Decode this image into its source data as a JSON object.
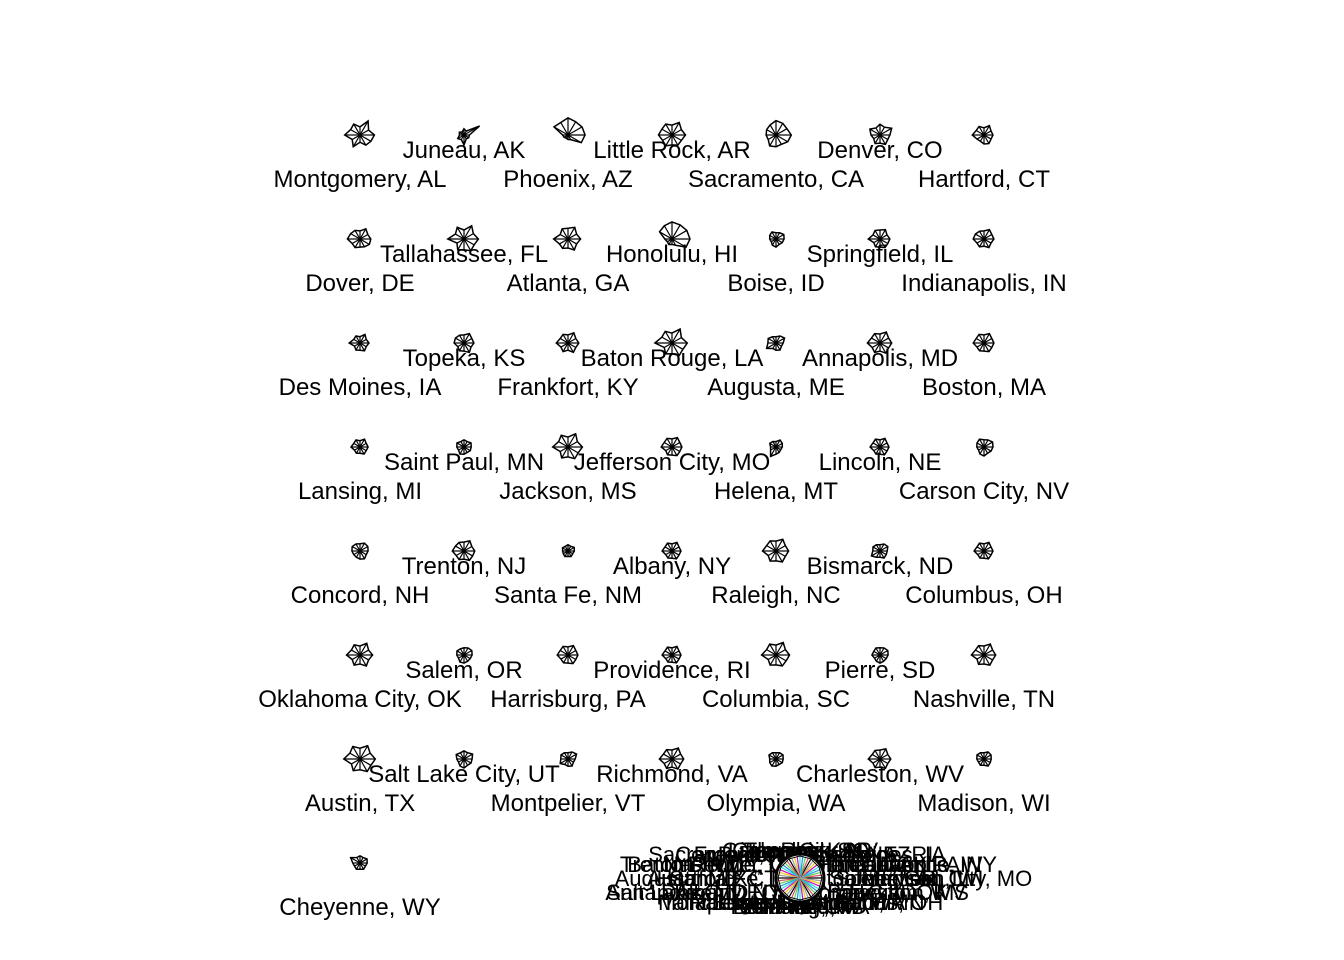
{
  "chart_data": {
    "type": "stars",
    "title": "",
    "colors": {
      "ink": "#000000",
      "key_palette": [
        "#000000",
        "#df536b",
        "#61d04f",
        "#2297e6",
        "#28e2e5",
        "#cd0bbc",
        "#f5c710",
        "#9e9e9e"
      ]
    },
    "cities": [
      {
        "label": "Montgomery, AL",
        "values": [
          0.8,
          0.55,
          0.9,
          0.45,
          0.7,
          0.6,
          0.85,
          0.5,
          0.75,
          0.4,
          0.65,
          0.7
        ]
      },
      {
        "label": "Juneau, AK",
        "values": [
          0.3,
          1.0,
          0.25,
          0.35,
          0.2,
          0.3,
          0.25,
          0.4,
          0.3,
          0.55,
          0.25,
          0.3
        ]
      },
      {
        "label": "Phoenix, AZ",
        "values": [
          0.95,
          0.9,
          0.85,
          0.95,
          0.8,
          0.9,
          0.3,
          0.25,
          0.2,
          0.25,
          0.3,
          0.85
        ]
      },
      {
        "label": "Little Rock, AR",
        "values": [
          0.75,
          0.6,
          0.8,
          0.55,
          0.7,
          0.65,
          0.75,
          0.6,
          0.7,
          0.55,
          0.65,
          0.6
        ]
      },
      {
        "label": "Sacramento, CA",
        "values": [
          0.85,
          0.7,
          0.75,
          0.8,
          0.65,
          0.6,
          0.55,
          0.5,
          0.7,
          0.65,
          0.6,
          0.75
        ]
      },
      {
        "label": "Denver, CO",
        "values": [
          0.55,
          0.75,
          0.5,
          0.6,
          0.45,
          0.65,
          0.5,
          0.4,
          0.55,
          0.45,
          0.6,
          0.5
        ]
      },
      {
        "label": "Hartford, CT",
        "values": [
          0.5,
          0.45,
          0.6,
          0.4,
          0.55,
          0.5,
          0.65,
          0.45,
          0.4,
          0.5,
          0.55,
          0.45
        ]
      },
      {
        "label": "Dover, DE",
        "values": [
          0.6,
          0.5,
          0.65,
          0.45,
          0.55,
          0.6,
          0.7,
          0.5,
          0.55,
          0.45,
          0.5,
          0.6
        ]
      },
      {
        "label": "Tallahassee, FL",
        "values": [
          0.8,
          0.6,
          0.85,
          0.5,
          0.75,
          0.55,
          0.9,
          0.45,
          0.7,
          0.6,
          0.75,
          0.65
        ]
      },
      {
        "label": "Atlanta, GA",
        "values": [
          0.7,
          0.55,
          0.75,
          0.6,
          0.65,
          0.5,
          0.8,
          0.55,
          0.6,
          0.5,
          0.7,
          0.55
        ]
      },
      {
        "label": "Honolulu, HI",
        "values": [
          1.0,
          0.95,
          0.9,
          0.95,
          0.85,
          0.8,
          0.4,
          0.3,
          0.35,
          0.3,
          0.4,
          0.9
        ]
      },
      {
        "label": "Boise, ID",
        "values": [
          0.45,
          0.5,
          0.4,
          0.35,
          0.45,
          0.4,
          0.35,
          0.3,
          0.4,
          0.45,
          0.35,
          0.4
        ]
      },
      {
        "label": "Springfield, IL",
        "values": [
          0.55,
          0.45,
          0.6,
          0.5,
          0.55,
          0.45,
          0.65,
          0.4,
          0.5,
          0.45,
          0.55,
          0.5
        ]
      },
      {
        "label": "Indianapolis, IN",
        "values": [
          0.55,
          0.5,
          0.6,
          0.45,
          0.5,
          0.55,
          0.6,
          0.45,
          0.5,
          0.4,
          0.55,
          0.45
        ]
      },
      {
        "label": "Des Moines, IA",
        "values": [
          0.5,
          0.4,
          0.55,
          0.35,
          0.45,
          0.4,
          0.6,
          0.35,
          0.45,
          0.4,
          0.5,
          0.4
        ]
      },
      {
        "label": "Topeka, KS",
        "values": [
          0.55,
          0.5,
          0.6,
          0.45,
          0.5,
          0.55,
          0.55,
          0.4,
          0.5,
          0.45,
          0.6,
          0.45
        ]
      },
      {
        "label": "Frankfort, KY",
        "values": [
          0.6,
          0.5,
          0.65,
          0.45,
          0.55,
          0.5,
          0.65,
          0.45,
          0.55,
          0.4,
          0.6,
          0.5
        ]
      },
      {
        "label": "Baton Rouge, LA",
        "values": [
          0.85,
          0.6,
          0.9,
          0.55,
          0.75,
          0.65,
          0.95,
          0.5,
          0.7,
          0.6,
          0.8,
          0.7
        ]
      },
      {
        "label": "Augusta, ME",
        "values": [
          0.4,
          0.55,
          0.45,
          0.35,
          0.4,
          0.5,
          0.45,
          0.6,
          0.35,
          0.4,
          0.45,
          0.35
        ]
      },
      {
        "label": "Annapolis, MD",
        "values": [
          0.65,
          0.55,
          0.7,
          0.5,
          0.6,
          0.55,
          0.7,
          0.5,
          0.6,
          0.45,
          0.65,
          0.55
        ]
      },
      {
        "label": "Boston, MA",
        "values": [
          0.55,
          0.5,
          0.6,
          0.45,
          0.55,
          0.5,
          0.6,
          0.45,
          0.5,
          0.45,
          0.55,
          0.5
        ]
      },
      {
        "label": "Lansing, MI",
        "values": [
          0.45,
          0.4,
          0.5,
          0.35,
          0.45,
          0.4,
          0.5,
          0.35,
          0.4,
          0.35,
          0.45,
          0.4
        ]
      },
      {
        "label": "Saint Paul, MN",
        "values": [
          0.4,
          0.45,
          0.35,
          0.4,
          0.35,
          0.45,
          0.4,
          0.35,
          0.45,
          0.4,
          0.35,
          0.4
        ]
      },
      {
        "label": "Jackson, MS",
        "values": [
          0.8,
          0.6,
          0.85,
          0.55,
          0.75,
          0.6,
          0.85,
          0.5,
          0.7,
          0.55,
          0.75,
          0.65
        ]
      },
      {
        "label": "Jefferson City, MO",
        "values": [
          0.55,
          0.5,
          0.6,
          0.45,
          0.55,
          0.5,
          0.6,
          0.4,
          0.5,
          0.45,
          0.55,
          0.5
        ]
      },
      {
        "label": "Helena, MT",
        "values": [
          0.35,
          0.4,
          0.45,
          0.3,
          0.35,
          0.4,
          0.3,
          0.35,
          0.6,
          0.4,
          0.35,
          0.3
        ]
      },
      {
        "label": "Lincoln, NE",
        "values": [
          0.5,
          0.45,
          0.55,
          0.4,
          0.5,
          0.45,
          0.55,
          0.4,
          0.45,
          0.4,
          0.5,
          0.45
        ]
      },
      {
        "label": "Carson City, NV",
        "values": [
          0.5,
          0.55,
          0.45,
          0.4,
          0.5,
          0.45,
          0.4,
          0.35,
          0.45,
          0.5,
          0.4,
          0.45
        ]
      },
      {
        "label": "Concord, NH",
        "values": [
          0.45,
          0.5,
          0.5,
          0.4,
          0.45,
          0.5,
          0.45,
          0.4,
          0.4,
          0.45,
          0.5,
          0.4
        ]
      },
      {
        "label": "Trenton, NJ",
        "values": [
          0.6,
          0.5,
          0.65,
          0.5,
          0.55,
          0.55,
          0.65,
          0.5,
          0.55,
          0.45,
          0.6,
          0.55
        ]
      },
      {
        "label": "Santa Fe, NM",
        "values": [
          0.35,
          0.4,
          0.3,
          0.35,
          0.3,
          0.35,
          0.3,
          0.3,
          0.35,
          0.3,
          0.35,
          0.3
        ]
      },
      {
        "label": "Albany, NY",
        "values": [
          0.5,
          0.45,
          0.55,
          0.4,
          0.5,
          0.45,
          0.55,
          0.4,
          0.45,
          0.4,
          0.5,
          0.45
        ]
      },
      {
        "label": "Raleigh, NC",
        "values": [
          0.7,
          0.6,
          0.75,
          0.55,
          0.65,
          0.6,
          0.75,
          0.5,
          0.65,
          0.55,
          0.7,
          0.6
        ]
      },
      {
        "label": "Bismarck, ND",
        "values": [
          0.4,
          0.5,
          0.45,
          0.35,
          0.4,
          0.45,
          0.4,
          0.55,
          0.4,
          0.35,
          0.45,
          0.4
        ]
      },
      {
        "label": "Columbus, OH",
        "values": [
          0.5,
          0.45,
          0.55,
          0.4,
          0.5,
          0.45,
          0.55,
          0.4,
          0.45,
          0.4,
          0.5,
          0.45
        ]
      },
      {
        "label": "Oklahoma City, OK",
        "values": [
          0.7,
          0.55,
          0.75,
          0.5,
          0.65,
          0.55,
          0.75,
          0.5,
          0.65,
          0.5,
          0.7,
          0.55
        ]
      },
      {
        "label": "Salem, OR",
        "values": [
          0.45,
          0.5,
          0.45,
          0.4,
          0.4,
          0.45,
          0.4,
          0.35,
          0.45,
          0.45,
          0.4,
          0.4
        ]
      },
      {
        "label": "Harrisburg, PA",
        "values": [
          0.55,
          0.5,
          0.6,
          0.45,
          0.55,
          0.5,
          0.6,
          0.45,
          0.5,
          0.45,
          0.55,
          0.5
        ]
      },
      {
        "label": "Providence, RI",
        "values": [
          0.5,
          0.45,
          0.55,
          0.4,
          0.5,
          0.45,
          0.55,
          0.4,
          0.45,
          0.4,
          0.5,
          0.45
        ]
      },
      {
        "label": "Columbia, SC",
        "values": [
          0.75,
          0.6,
          0.8,
          0.55,
          0.7,
          0.6,
          0.8,
          0.5,
          0.65,
          0.55,
          0.7,
          0.65
        ]
      },
      {
        "label": "Pierre, SD",
        "values": [
          0.45,
          0.5,
          0.45,
          0.4,
          0.45,
          0.4,
          0.45,
          0.35,
          0.4,
          0.45,
          0.4,
          0.4
        ]
      },
      {
        "label": "Nashville, TN",
        "values": [
          0.65,
          0.55,
          0.7,
          0.5,
          0.6,
          0.55,
          0.7,
          0.45,
          0.6,
          0.5,
          0.65,
          0.55
        ]
      },
      {
        "label": "Austin, TX",
        "values": [
          0.85,
          0.65,
          0.85,
          0.6,
          0.8,
          0.65,
          0.9,
          0.55,
          0.75,
          0.6,
          0.8,
          0.7
        ]
      },
      {
        "label": "Salt Lake City, UT",
        "values": [
          0.45,
          0.55,
          0.4,
          0.45,
          0.4,
          0.5,
          0.4,
          0.35,
          0.45,
          0.5,
          0.4,
          0.45
        ]
      },
      {
        "label": "Montpelier, VT",
        "values": [
          0.4,
          0.55,
          0.45,
          0.35,
          0.4,
          0.45,
          0.4,
          0.5,
          0.35,
          0.4,
          0.45,
          0.35
        ]
      },
      {
        "label": "Richmond, VA",
        "values": [
          0.65,
          0.55,
          0.7,
          0.5,
          0.6,
          0.55,
          0.7,
          0.5,
          0.6,
          0.45,
          0.65,
          0.55
        ]
      },
      {
        "label": "Olympia, WA",
        "values": [
          0.4,
          0.45,
          0.4,
          0.35,
          0.4,
          0.45,
          0.35,
          0.4,
          0.45,
          0.4,
          0.35,
          0.4
        ]
      },
      {
        "label": "Charleston, WV",
        "values": [
          0.6,
          0.5,
          0.65,
          0.5,
          0.55,
          0.5,
          0.65,
          0.45,
          0.55,
          0.45,
          0.6,
          0.5
        ]
      },
      {
        "label": "Madison, WI",
        "values": [
          0.4,
          0.45,
          0.45,
          0.35,
          0.4,
          0.45,
          0.4,
          0.35,
          0.4,
          0.35,
          0.45,
          0.4
        ]
      },
      {
        "label": "Cheyenne, WY",
        "values": [
          0.4,
          0.45,
          0.35,
          0.4,
          0.35,
          0.6,
          0.4,
          0.35,
          0.4,
          0.35,
          0.4,
          0.35
        ]
      }
    ],
    "key": {
      "values": [
        1,
        1,
        1,
        1,
        1,
        1,
        1,
        1,
        1,
        1,
        1,
        1
      ]
    }
  }
}
